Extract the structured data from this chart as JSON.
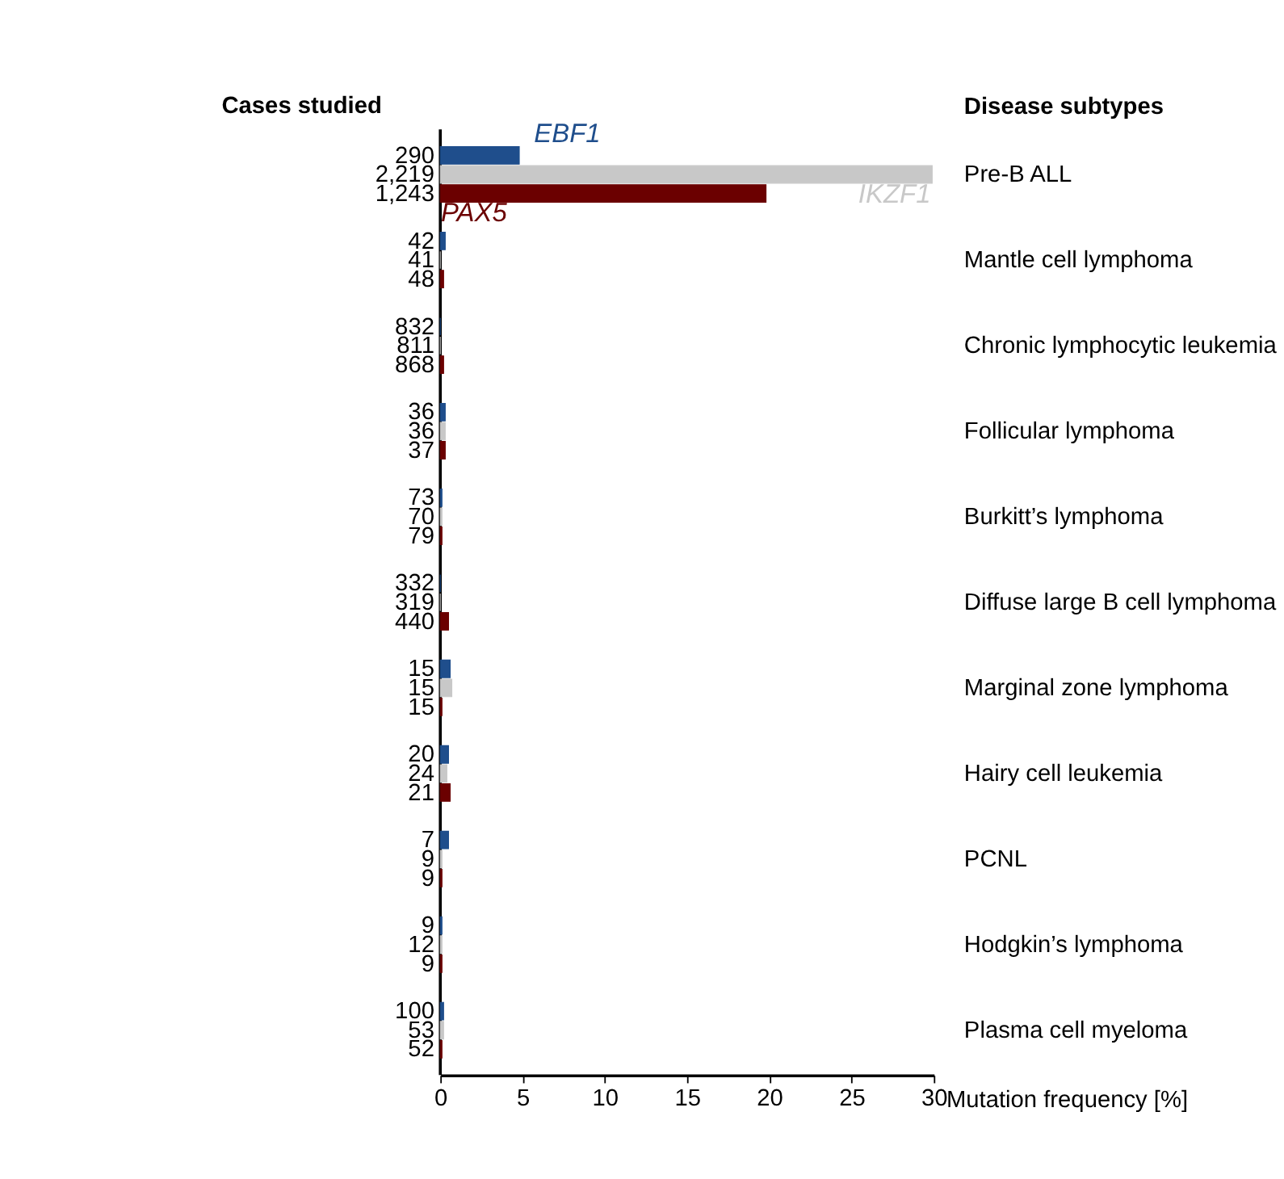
{
  "chart_data": {
    "type": "bar",
    "orientation": "horizontal",
    "ylabel": "Disease subtypes",
    "xlabel": "Mutation frequency [%]",
    "categories": [
      "Pre-B ALL",
      "Mantle cell lymphoma",
      "Chronic lymphocytic leukemia",
      "Follicular lymphoma",
      "Burkitt’s lymphoma",
      "Diffuse large B cell lymphoma",
      "Marginal zone lymphoma",
      "Hairy cell leukemia",
      "PCNL",
      "Hodgkin’s lymphoma",
      "Plasma cell myeloma"
    ],
    "series": [
      {
        "name": "EBF1",
        "color": "#1f4e8c",
        "values": [
          4.8,
          0.3,
          0,
          0.3,
          0.1,
          0,
          0.6,
          0.5,
          0.5,
          0.1,
          0.2
        ]
      },
      {
        "name": "IKZF1",
        "color": "#c8c8c8",
        "values": [
          29.9,
          0,
          0,
          0.3,
          0.1,
          0,
          0.7,
          0.4,
          0.1,
          0.1,
          0.2
        ]
      },
      {
        "name": "PAX5",
        "color": "#6b0000",
        "values": [
          19.8,
          0.2,
          0.2,
          0.3,
          0.1,
          0.5,
          0.1,
          0.6,
          0.1,
          0.1,
          0.1
        ]
      }
    ],
    "annotations": [
      "Cases studied",
      "290",
      "2,219",
      "1,243",
      "42",
      "41",
      "48",
      "832",
      "811",
      "868",
      "36",
      "36",
      "37",
      "73",
      "70",
      "79",
      "332",
      "319",
      "440",
      "15",
      "15",
      "15",
      "20",
      "24",
      "21",
      "7",
      "9",
      "9",
      "9",
      "12",
      "9",
      "100",
      "53",
      "52"
    ],
    "xlim": [
      0,
      30
    ],
    "xticks": [
      0,
      5,
      10,
      15,
      20,
      25,
      30
    ],
    "grid": false,
    "legend": false
  }
}
